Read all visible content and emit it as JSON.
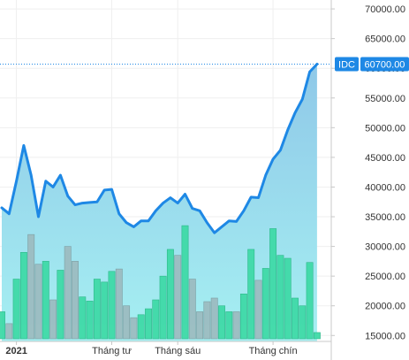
{
  "chart_data": {
    "type": "area",
    "series": [
      {
        "name": "IDC",
        "role": "price",
        "y": [
          36500,
          35500,
          41000,
          47000,
          42000,
          35000,
          41000,
          40000,
          42000,
          38500,
          37000,
          37300,
          37400,
          37500,
          39500,
          39600,
          35500,
          34000,
          33300,
          34300,
          34300,
          36000,
          37300,
          38200,
          37300,
          38800,
          36400,
          36000,
          34000,
          32300,
          33300,
          34300,
          34200,
          36000,
          38300,
          38200,
          42000,
          44700,
          46200,
          49600,
          52500,
          54800,
          59400,
          60700
        ]
      },
      {
        "name": "volume",
        "role": "volume",
        "y": [
          19000,
          17000,
          24500,
          29000,
          32000,
          27000,
          27500,
          21000,
          26000,
          30000,
          27500,
          21500,
          20800,
          24500,
          24000,
          25800,
          26200,
          20000,
          18000,
          18500,
          19500,
          21000,
          25000,
          29500,
          28500,
          33500,
          24500,
          19000,
          20700,
          21300,
          20000,
          19000,
          19000,
          22000,
          29500,
          24300,
          26300,
          33000,
          28500,
          28000,
          21300,
          20000,
          27300,
          15500
        ]
      }
    ],
    "y_axis": {
      "ticks": [
        "15000.00",
        "20000.00",
        "25000.00",
        "30000.00",
        "35000.00",
        "40000.00",
        "45000.00",
        "50000.00",
        "55000.00",
        "60000.00",
        "65000.00",
        "70000.00"
      ],
      "range": [
        14000,
        71500
      ],
      "side": "right"
    },
    "x_axis": {
      "ticks": [
        {
          "label": "2021",
          "index": 2,
          "bold": true
        },
        {
          "label": "Tháng tư",
          "index": 15
        },
        {
          "label": "Tháng sáu",
          "index": 24
        },
        {
          "label": "Tháng chín",
          "index": 37
        }
      ]
    },
    "price_tag": {
      "symbol": "IDC",
      "value": "60700.00",
      "level": 60700
    },
    "grid": true,
    "colors": {
      "line": "#1e88e5",
      "area_top": "#8fc8e8",
      "area_bottom": "#a6f0f2",
      "volume_up": "#3fd9a6",
      "volume_down": "#9cbcc0",
      "tag": "#1e88e5"
    }
  }
}
